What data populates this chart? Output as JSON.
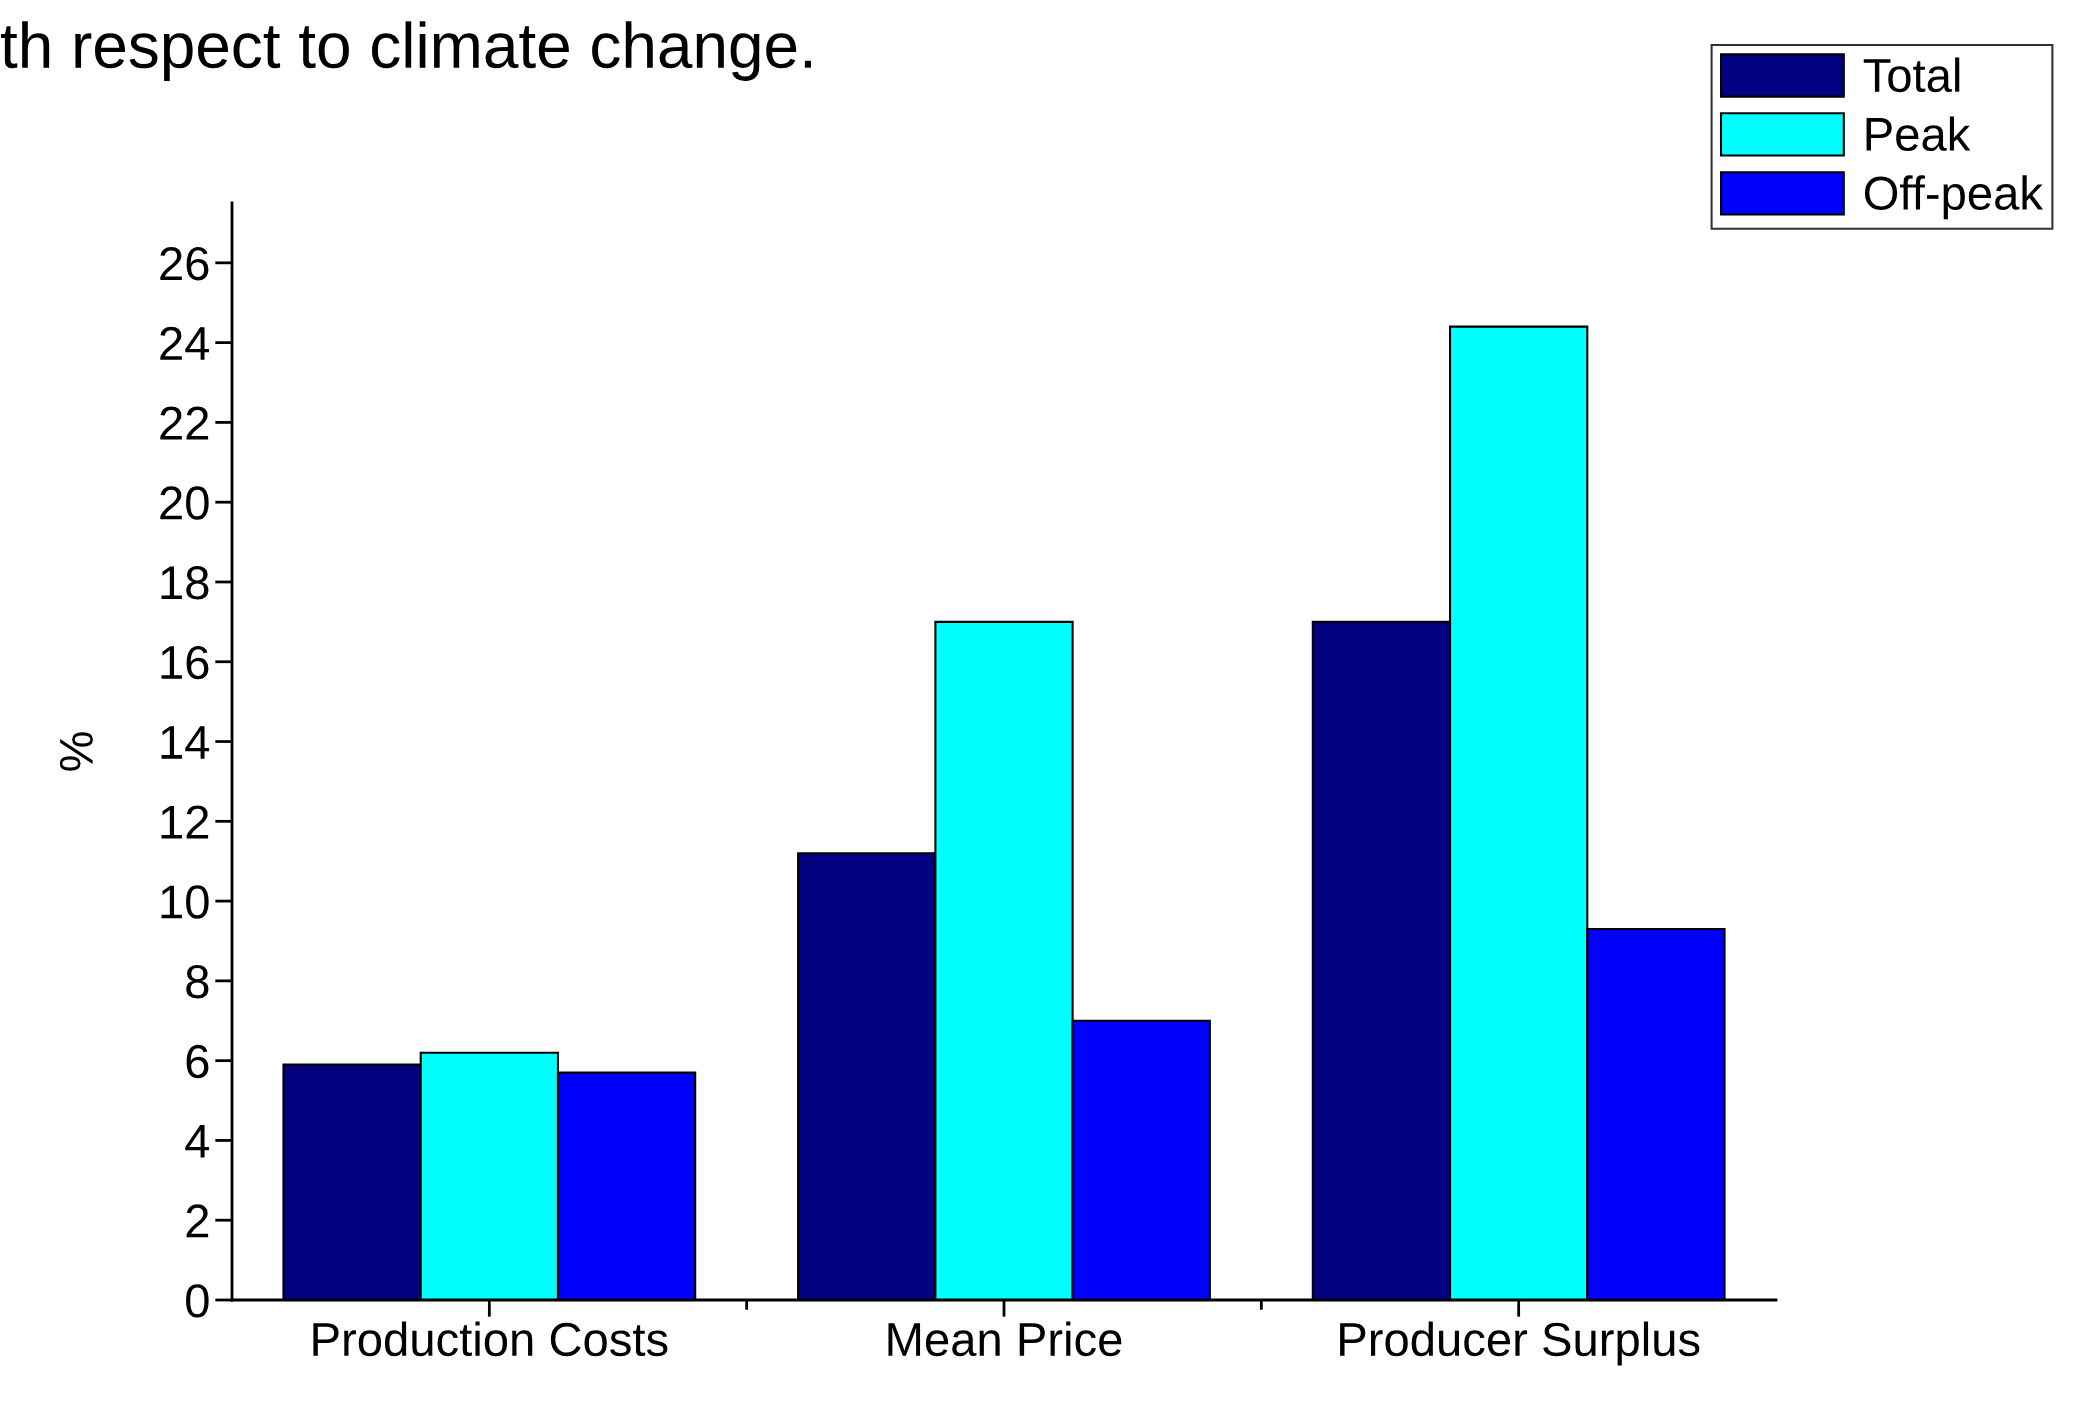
{
  "chart_data": {
    "type": "bar",
    "title": "th respect to climate change.",
    "ylabel": "%",
    "categories": [
      "Production Costs",
      "Mean Price",
      "Producer Surplus"
    ],
    "series": [
      {
        "name": "Total",
        "color": "#000080",
        "values": [
          5.9,
          11.2,
          17.0
        ]
      },
      {
        "name": "Peak",
        "color": "#00ffff",
        "values": [
          6.2,
          17.0,
          24.4
        ]
      },
      {
        "name": "Off-peak",
        "color": "#0000ff",
        "values": [
          5.7,
          7.0,
          9.3
        ]
      }
    ],
    "ylim": [
      0,
      27.5
    ],
    "yticks": [
      0,
      2,
      4,
      6,
      8,
      10,
      12,
      14,
      16,
      18,
      20,
      22,
      24,
      26
    ],
    "grid": false,
    "legend": "top right"
  }
}
